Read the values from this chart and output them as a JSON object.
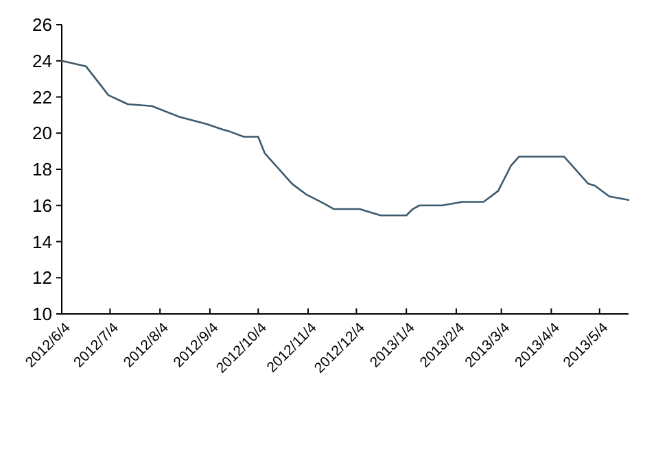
{
  "chart_data": {
    "type": "line",
    "x": [
      "2012-06-04",
      "2012-06-19",
      "2012-07-03",
      "2012-07-15",
      "2012-07-30",
      "2012-08-16",
      "2012-09-02",
      "2012-09-12",
      "2012-09-16",
      "2012-09-25",
      "2012-10-04",
      "2012-10-08",
      "2012-10-25",
      "2012-11-03",
      "2012-11-14",
      "2012-11-20",
      "2012-12-06",
      "2012-12-19",
      "2013-01-04",
      "2013-01-08",
      "2013-01-12",
      "2013-01-26",
      "2013-02-08",
      "2013-02-21",
      "2013-03-02",
      "2013-03-10",
      "2013-03-15",
      "2013-04-12",
      "2013-04-27",
      "2013-05-01",
      "2013-05-10",
      "2013-05-22"
    ],
    "series": [
      {
        "color": "#3d5a6e",
        "values": [
          24.0,
          23.7,
          22.1,
          21.6,
          21.5,
          20.9,
          20.5,
          20.2,
          20.1,
          19.8,
          19.8,
          18.9,
          17.2,
          16.6,
          16.1,
          15.8,
          15.8,
          15.45,
          15.45,
          15.8,
          16.0,
          16.0,
          16.2,
          16.2,
          16.8,
          18.2,
          18.7,
          18.7,
          17.2,
          17.1,
          16.5,
          16.3
        ]
      }
    ],
    "xlim": [
      "2012-06-04",
      "2013-05-22"
    ],
    "xticks": [
      {
        "value": "2012-06-04",
        "label": "2012/6/4"
      },
      {
        "value": "2012-07-04",
        "label": "2012/7/4"
      },
      {
        "value": "2012-08-04",
        "label": "2012/8/4"
      },
      {
        "value": "2012-09-04",
        "label": "2012/9/4"
      },
      {
        "value": "2012-10-04",
        "label": "2012/10/4"
      },
      {
        "value": "2012-11-04",
        "label": "2012/11/4"
      },
      {
        "value": "2012-12-04",
        "label": "2012/12/4"
      },
      {
        "value": "2013-01-04",
        "label": "2013/1/4"
      },
      {
        "value": "2013-02-04",
        "label": "2013/2/4"
      },
      {
        "value": "2013-03-04",
        "label": "2013/3/4"
      },
      {
        "value": "2013-04-04",
        "label": "2013/4/4"
      },
      {
        "value": "2013-05-04",
        "label": "2013/5/4"
      }
    ],
    "ylim": [
      10,
      26
    ],
    "yticks": [
      10,
      12,
      14,
      16,
      18,
      20,
      22,
      24,
      26
    ],
    "grid": false,
    "marker": "none",
    "line_style": "solid"
  }
}
